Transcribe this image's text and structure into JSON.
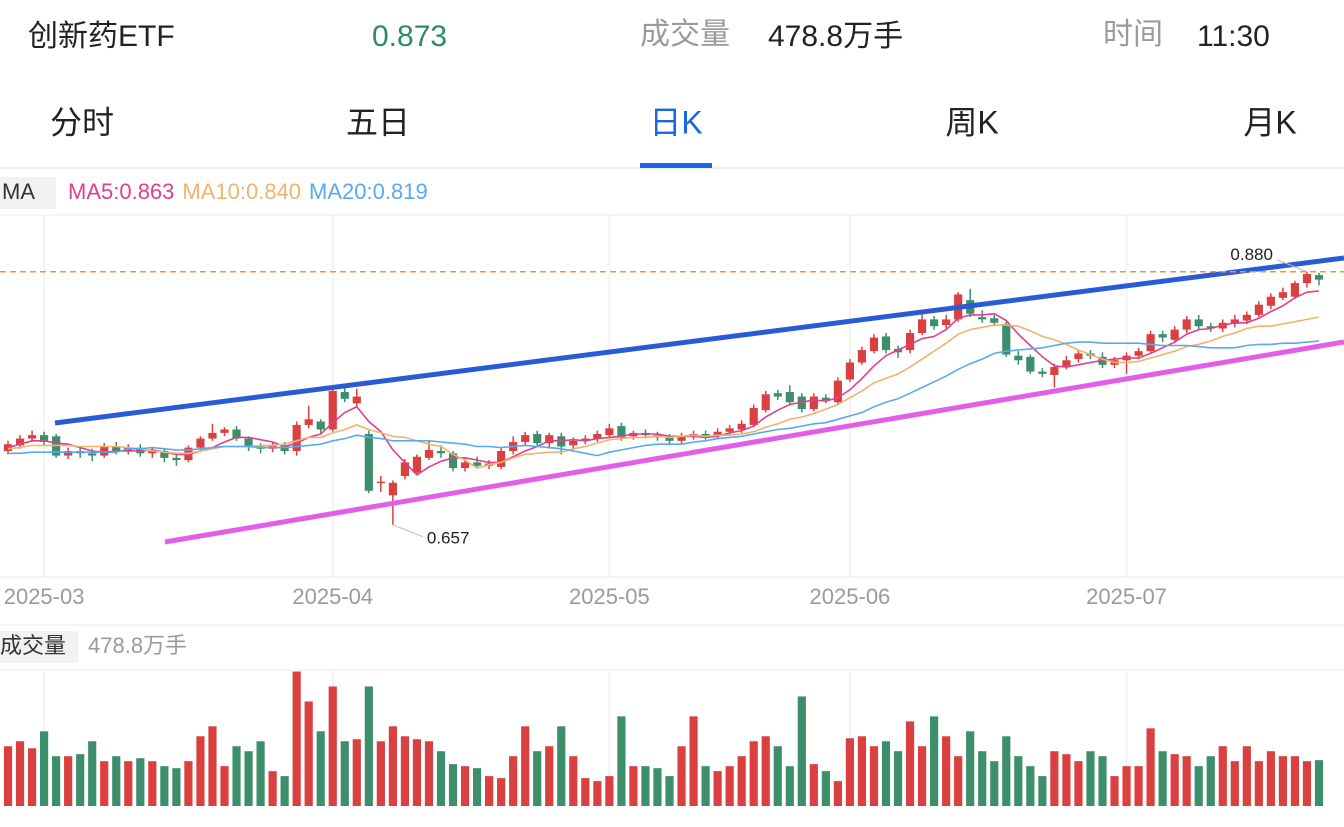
{
  "header": {
    "name": "创新药ETF",
    "price": "0.873",
    "volume_label": "成交量",
    "volume": "478.8万手",
    "time_label": "时间",
    "time": "11:30"
  },
  "tabs": {
    "items": [
      "分时",
      "五日",
      "日K",
      "周K",
      "月K"
    ],
    "active": 2
  },
  "chart_data": [
    {
      "type": "candlestick",
      "legend_title": "MA",
      "up_color": "#d9403f",
      "down_color": "#3d8f6c",
      "categories": [
        null,
        null,
        null,
        "2025-03",
        null,
        null,
        null,
        null,
        null,
        null,
        null,
        null,
        null,
        null,
        null,
        null,
        null,
        null,
        null,
        null,
        null,
        null,
        null,
        null,
        null,
        null,
        null,
        "2025-04",
        null,
        null,
        null,
        null,
        null,
        null,
        null,
        null,
        null,
        null,
        null,
        null,
        null,
        null,
        null,
        null,
        null,
        null,
        null,
        null,
        null,
        null,
        "2025-05",
        null,
        null,
        null,
        null,
        null,
        null,
        null,
        null,
        null,
        null,
        null,
        null,
        null,
        null,
        null,
        null,
        null,
        null,
        null,
        "2025-06",
        null,
        null,
        null,
        null,
        null,
        null,
        null,
        null,
        null,
        null,
        null,
        null,
        null,
        null,
        null,
        null,
        null,
        null,
        null,
        null,
        null,
        null,
        "2025-07",
        null,
        null,
        null,
        null,
        null,
        null,
        null,
        null,
        null,
        null,
        null,
        null,
        null,
        null,
        null,
        null
      ],
      "open": [
        0.722,
        0.727,
        0.733,
        0.736,
        0.735,
        0.718,
        0.722,
        0.72,
        0.718,
        0.726,
        0.722,
        0.725,
        0.72,
        0.722,
        0.716,
        0.714,
        0.725,
        0.733,
        0.738,
        0.741,
        0.733,
        0.726,
        0.724,
        0.727,
        0.722,
        0.745,
        0.748,
        0.741,
        0.774,
        0.764,
        0.737,
        0.694,
        0.683,
        0.7,
        0.703,
        0.716,
        0.722,
        0.72,
        0.707,
        0.712,
        0.709,
        0.708,
        0.722,
        0.73,
        0.737,
        0.729,
        0.735,
        0.727,
        0.731,
        0.733,
        0.736,
        0.744,
        0.735,
        0.738,
        0.736,
        0.734,
        0.731,
        0.735,
        0.737,
        0.736,
        0.739,
        0.741,
        0.745,
        0.758,
        0.773,
        0.774,
        0.77,
        0.759,
        0.769,
        0.765,
        0.785,
        0.8,
        0.81,
        0.823,
        0.812,
        0.811,
        0.826,
        0.838,
        0.833,
        0.838,
        0.855,
        0.84,
        0.839,
        0.834,
        0.806,
        0.805,
        0.792,
        0.789,
        0.796,
        0.803,
        0.808,
        0.805,
        0.798,
        0.802,
        0.806,
        0.81,
        0.825,
        0.82,
        0.829,
        0.838,
        0.832,
        0.83,
        0.834,
        0.837,
        0.842,
        0.85,
        0.857,
        0.858,
        0.87,
        0.877
      ],
      "high": [
        0.731,
        0.736,
        0.74,
        0.739,
        0.737,
        0.725,
        0.726,
        0.724,
        0.729,
        0.73,
        0.728,
        0.728,
        0.725,
        0.724,
        0.719,
        0.727,
        0.735,
        0.746,
        0.743,
        0.744,
        0.735,
        0.729,
        0.73,
        0.73,
        0.748,
        0.762,
        0.75,
        0.778,
        0.778,
        0.777,
        0.74,
        0.7,
        0.696,
        0.715,
        0.719,
        0.731,
        0.727,
        0.722,
        0.716,
        0.717,
        0.714,
        0.725,
        0.735,
        0.739,
        0.74,
        0.738,
        0.738,
        0.734,
        0.736,
        0.74,
        0.746,
        0.747,
        0.74,
        0.741,
        0.739,
        0.737,
        0.738,
        0.74,
        0.74,
        0.742,
        0.745,
        0.749,
        0.763,
        0.775,
        0.776,
        0.78,
        0.773,
        0.773,
        0.772,
        0.787,
        0.803,
        0.814,
        0.825,
        0.826,
        0.815,
        0.829,
        0.846,
        0.841,
        0.842,
        0.862,
        0.865,
        0.846,
        0.842,
        0.836,
        0.81,
        0.807,
        0.795,
        0.799,
        0.806,
        0.811,
        0.811,
        0.809,
        0.805,
        0.809,
        0.813,
        0.828,
        0.828,
        0.832,
        0.841,
        0.842,
        0.835,
        0.838,
        0.842,
        0.845,
        0.854,
        0.861,
        0.866,
        0.872,
        0.88,
        0.879
      ],
      "low": [
        0.719,
        0.724,
        0.73,
        0.727,
        0.716,
        0.715,
        0.716,
        0.713,
        0.716,
        0.719,
        0.719,
        0.717,
        0.716,
        0.712,
        0.709,
        0.712,
        0.722,
        0.731,
        0.735,
        0.731,
        0.722,
        0.72,
        0.721,
        0.719,
        0.718,
        0.742,
        0.738,
        0.739,
        0.765,
        0.76,
        0.685,
        0.686,
        0.657,
        0.697,
        0.701,
        0.714,
        0.716,
        0.704,
        0.704,
        0.707,
        0.706,
        0.706,
        0.719,
        0.727,
        0.726,
        0.724,
        0.719,
        0.723,
        0.728,
        0.73,
        0.734,
        0.731,
        0.732,
        0.733,
        0.731,
        0.727,
        0.728,
        0.732,
        0.732,
        0.733,
        0.736,
        0.738,
        0.743,
        0.756,
        0.767,
        0.762,
        0.756,
        0.757,
        0.764,
        0.763,
        0.783,
        0.798,
        0.808,
        0.808,
        0.804,
        0.808,
        0.824,
        0.829,
        0.83,
        0.836,
        0.84,
        0.835,
        0.832,
        0.805,
        0.798,
        0.79,
        0.787,
        0.778,
        0.794,
        0.8,
        0.803,
        0.795,
        0.795,
        0.79,
        0.803,
        0.808,
        0.818,
        0.817,
        0.826,
        0.829,
        0.827,
        0.827,
        0.831,
        0.834,
        0.84,
        0.847,
        0.855,
        0.856,
        0.866,
        0.868
      ],
      "close": [
        0.728,
        0.733,
        0.736,
        0.73,
        0.718,
        0.722,
        0.72,
        0.718,
        0.726,
        0.722,
        0.725,
        0.72,
        0.722,
        0.716,
        0.714,
        0.725,
        0.733,
        0.738,
        0.741,
        0.733,
        0.726,
        0.724,
        0.727,
        0.722,
        0.745,
        0.75,
        0.741,
        0.775,
        0.768,
        0.77,
        0.687,
        0.695,
        0.694,
        0.712,
        0.717,
        0.723,
        0.72,
        0.707,
        0.712,
        0.709,
        0.711,
        0.722,
        0.73,
        0.736,
        0.729,
        0.736,
        0.726,
        0.731,
        0.733,
        0.737,
        0.742,
        0.734,
        0.738,
        0.736,
        0.734,
        0.731,
        0.735,
        0.737,
        0.735,
        0.739,
        0.742,
        0.746,
        0.76,
        0.772,
        0.77,
        0.765,
        0.759,
        0.77,
        0.767,
        0.784,
        0.8,
        0.811,
        0.822,
        0.811,
        0.809,
        0.826,
        0.838,
        0.832,
        0.838,
        0.86,
        0.843,
        0.838,
        0.835,
        0.807,
        0.802,
        0.792,
        0.79,
        0.796,
        0.802,
        0.808,
        0.806,
        0.798,
        0.802,
        0.806,
        0.81,
        0.825,
        0.822,
        0.829,
        0.838,
        0.832,
        0.83,
        0.835,
        0.838,
        0.842,
        0.851,
        0.858,
        0.862,
        0.87,
        0.878,
        0.873
      ],
      "series": [
        {
          "name": "MA5",
          "label": "MA5:0.863",
          "color": "#e0408a",
          "values": [
            0.725,
            0.728,
            0.731,
            0.731,
            0.729,
            0.728,
            0.725,
            0.722,
            0.721,
            0.722,
            0.722,
            0.722,
            0.723,
            0.721,
            0.719,
            0.719,
            0.722,
            0.725,
            0.73,
            0.734,
            0.734,
            0.732,
            0.73,
            0.726,
            0.729,
            0.734,
            0.737,
            0.747,
            0.756,
            0.761,
            0.748,
            0.739,
            0.723,
            0.712,
            0.701,
            0.708,
            0.713,
            0.716,
            0.716,
            0.714,
            0.712,
            0.712,
            0.717,
            0.722,
            0.726,
            0.731,
            0.731,
            0.732,
            0.731,
            0.733,
            0.734,
            0.735,
            0.737,
            0.737,
            0.737,
            0.735,
            0.735,
            0.735,
            0.734,
            0.735,
            0.738,
            0.74,
            0.744,
            0.752,
            0.758,
            0.763,
            0.765,
            0.767,
            0.766,
            0.769,
            0.776,
            0.786,
            0.797,
            0.806,
            0.811,
            0.816,
            0.821,
            0.823,
            0.829,
            0.839,
            0.842,
            0.842,
            0.843,
            0.837,
            0.825,
            0.815,
            0.805,
            0.797,
            0.796,
            0.798,
            0.8,
            0.802,
            0.803,
            0.804,
            0.804,
            0.808,
            0.813,
            0.818,
            0.825,
            0.829,
            0.83,
            0.833,
            0.835,
            0.835,
            0.839,
            0.845,
            0.85,
            0.857,
            0.862,
            0.863
          ]
        },
        {
          "name": "MA10",
          "label": "MA10:0.840",
          "color": "#f2b36b",
          "values": [
            0.724,
            0.725,
            0.727,
            0.727,
            0.727,
            0.727,
            0.726,
            0.726,
            0.726,
            0.726,
            0.725,
            0.724,
            0.722,
            0.721,
            0.72,
            0.72,
            0.722,
            0.724,
            0.726,
            0.726,
            0.726,
            0.727,
            0.727,
            0.728,
            0.731,
            0.734,
            0.734,
            0.738,
            0.741,
            0.745,
            0.741,
            0.738,
            0.735,
            0.734,
            0.731,
            0.728,
            0.726,
            0.719,
            0.714,
            0.707,
            0.71,
            0.712,
            0.716,
            0.719,
            0.72,
            0.721,
            0.721,
            0.724,
            0.726,
            0.729,
            0.732,
            0.733,
            0.734,
            0.734,
            0.735,
            0.734,
            0.735,
            0.736,
            0.735,
            0.736,
            0.736,
            0.737,
            0.739,
            0.743,
            0.746,
            0.75,
            0.752,
            0.755,
            0.759,
            0.763,
            0.769,
            0.775,
            0.782,
            0.786,
            0.79,
            0.796,
            0.803,
            0.81,
            0.817,
            0.825,
            0.829,
            0.831,
            0.833,
            0.833,
            0.832,
            0.828,
            0.823,
            0.82,
            0.816,
            0.811,
            0.807,
            0.803,
            0.8,
            0.8,
            0.801,
            0.804,
            0.807,
            0.81,
            0.814,
            0.816,
            0.819,
            0.823,
            0.826,
            0.83,
            0.832,
            0.832,
            0.834,
            0.836,
            0.838,
            0.84
          ]
        },
        {
          "name": "MA20",
          "label": "MA20:0.819",
          "color": "#5aa9ef",
          "values": [
            0.72,
            0.72,
            0.721,
            0.721,
            0.721,
            0.721,
            0.721,
            0.721,
            0.721,
            0.721,
            0.724,
            0.724,
            0.725,
            0.724,
            0.723,
            0.723,
            0.724,
            0.725,
            0.726,
            0.726,
            0.726,
            0.725,
            0.725,
            0.725,
            0.726,
            0.727,
            0.728,
            0.731,
            0.733,
            0.736,
            0.734,
            0.733,
            0.731,
            0.731,
            0.731,
            0.731,
            0.73,
            0.729,
            0.728,
            0.726,
            0.726,
            0.725,
            0.726,
            0.727,
            0.726,
            0.725,
            0.724,
            0.722,
            0.72,
            0.718,
            0.721,
            0.723,
            0.725,
            0.727,
            0.728,
            0.728,
            0.728,
            0.73,
            0.731,
            0.733,
            0.734,
            0.735,
            0.737,
            0.739,
            0.741,
            0.742,
            0.744,
            0.746,
            0.747,
            0.75,
            0.753,
            0.756,
            0.761,
            0.765,
            0.768,
            0.773,
            0.778,
            0.783,
            0.788,
            0.794,
            0.799,
            0.803,
            0.808,
            0.81,
            0.811,
            0.812,
            0.813,
            0.815,
            0.817,
            0.818,
            0.818,
            0.817,
            0.817,
            0.817,
            0.817,
            0.816,
            0.815,
            0.815,
            0.815,
            0.814,
            0.813,
            0.813,
            0.813,
            0.815,
            0.816,
            0.816,
            0.817,
            0.817,
            0.818,
            0.819
          ]
        }
      ],
      "ylim": [
        0.611,
        0.93
      ],
      "high_label": {
        "value": 0.88,
        "label": "0.880"
      },
      "low_label": {
        "value": 0.657,
        "label": "0.657"
      },
      "reference_color": "#f0963c"
    },
    {
      "type": "bar",
      "title": "成交量",
      "subtitle": "478.8万手",
      "ylim": [
        0,
        1420
      ],
      "values": [
        624,
        676,
        603,
        780,
        520,
        520,
        541,
        676,
        468,
        520,
        468,
        499,
        468,
        416,
        395,
        468,
        728,
        832,
        416,
        624,
        572,
        676,
        364,
        312,
        1404,
        1092,
        780,
        1248,
        676,
        697,
        1248,
        676,
        832,
        728,
        697,
        676,
        572,
        437,
        416,
        395,
        312,
        291,
        520,
        832,
        572,
        624,
        832,
        520,
        291,
        260,
        312,
        936,
        416,
        416,
        395,
        312,
        624,
        936,
        416,
        364,
        416,
        520,
        676,
        728,
        624,
        416,
        1144,
        437,
        364,
        260,
        707,
        728,
        624,
        676,
        572,
        884,
        624,
        936,
        728,
        520,
        780,
        572,
        468,
        728,
        520,
        416,
        312,
        572,
        541,
        468,
        572,
        520,
        312,
        416,
        416,
        811,
        572,
        541,
        520,
        416,
        520,
        624,
        468,
        624,
        468,
        572,
        520,
        520,
        468,
        478.8
      ]
    }
  ]
}
